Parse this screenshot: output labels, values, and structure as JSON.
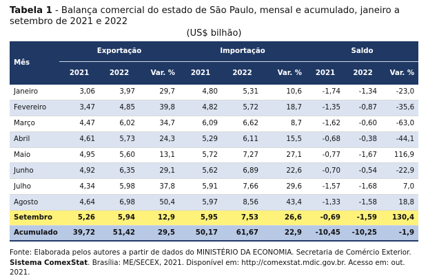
{
  "title": {
    "label": "Tabela 1",
    "sep": " - ",
    "text": "Balança comercial do estado de São Paulo, mensal e acumulado, janeiro a setembro de 2021 e 2022"
  },
  "unit": "(US$ bilhão)",
  "table": {
    "month_header": "Mês",
    "groups": [
      "Exportação",
      "Importação",
      "Saldo"
    ],
    "subheaders": [
      "2021",
      "2022",
      "Var. %",
      "2021",
      "2022",
      "Var. %",
      "2021",
      "2022",
      "Var. %"
    ],
    "rows": [
      [
        "Janeiro",
        "3,06",
        "3,97",
        "29,7",
        "4,80",
        "5,31",
        "10,6",
        "-1,74",
        "-1,34",
        "-23,0"
      ],
      [
        "Fevereiro",
        "3,47",
        "4,85",
        "39,8",
        "4,82",
        "5,72",
        "18,7",
        "-1,35",
        "-0,87",
        "-35,6"
      ],
      [
        "Março",
        "4,47",
        "6,02",
        "34,7",
        "6,09",
        "6,62",
        "8,7",
        "-1,62",
        "-0,60",
        "-63,0"
      ],
      [
        "Abril",
        "4,61",
        "5,73",
        "24,3",
        "5,29",
        "6,11",
        "15,5",
        "-0,68",
        "-0,38",
        "-44,1"
      ],
      [
        "Maio",
        "4,95",
        "5,60",
        "13,1",
        "5,72",
        "7,27",
        "27,1",
        "-0,77",
        "-1,67",
        "116,9"
      ],
      [
        "Junho",
        "4,92",
        "6,35",
        "29,1",
        "5,62",
        "6,89",
        "22,6",
        "-0,70",
        "-0,54",
        "-22,9"
      ],
      [
        "Julho",
        "4,34",
        "5,98",
        "37,8",
        "5,91",
        "7,66",
        "29,6",
        "-1,57",
        "-1,68",
        "7,0"
      ],
      [
        "Agosto",
        "4,64",
        "6,98",
        "50,4",
        "5,97",
        "8,56",
        "43,4",
        "-1,33",
        "-1,58",
        "18,8"
      ],
      [
        "Setembro",
        "5,26",
        "5,94",
        "12,9",
        "5,95",
        "7,53",
        "26,6",
        "-0,69",
        "-1,59",
        "130,4"
      ],
      [
        "Acumulado",
        "39,72",
        "51,42",
        "29,5",
        "50,17",
        "61,67",
        "22,9",
        "-10,45",
        "-10,25",
        "-1,9"
      ]
    ]
  },
  "source": {
    "p1": "Fonte: Elaborada pelos autores a partir de dados do MINISTÉRIO DA ECONOMIA. Secretaria de Comércio Exterior. ",
    "bold1": "Sistema",
    "bold2": "ComexStat",
    "p2": ". Brasília: ME/SECEX, 2021. Disponível em: http://comexstat.mdic.gov.br. Acesso em: out. 2021."
  }
}
